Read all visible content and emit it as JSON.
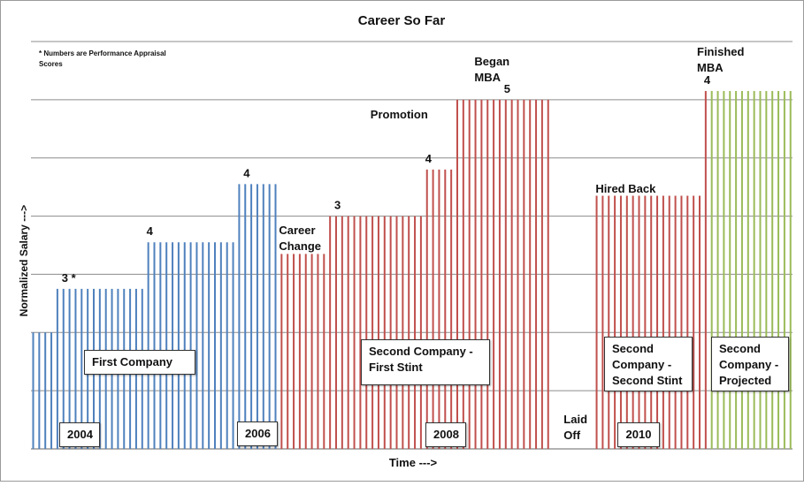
{
  "chart_data": {
    "type": "bar",
    "title": "Career So Far",
    "xlabel": "Time --->",
    "ylabel": "Normalized Salary --->",
    "note": "* Numbers are Performance Appraisal Scores",
    "ylim": [
      0,
      7
    ],
    "grid": true,
    "segments": [
      {
        "name": "First Company",
        "color": "#4f81bd",
        "start": 0,
        "count": 4,
        "value": 2
      },
      {
        "name": "First Company",
        "color": "#4f81bd",
        "start": 4,
        "count": 15,
        "value": 2.75
      },
      {
        "name": "First Company",
        "color": "#4f81bd",
        "start": 19,
        "count": 15,
        "value": 3.55
      },
      {
        "name": "First Company",
        "color": "#4f81bd",
        "start": 34,
        "count": 7,
        "value": 4.55
      },
      {
        "name": "Second Company - First Stint",
        "color": "#c0504d",
        "start": 41,
        "count": 8,
        "value": 3.35
      },
      {
        "name": "Second Company - First Stint",
        "color": "#c0504d",
        "start": 49,
        "count": 16,
        "value": 4
      },
      {
        "name": "Second Company - First Stint",
        "color": "#c0504d",
        "start": 65,
        "count": 5,
        "value": 4.8
      },
      {
        "name": "Second Company - First Stint",
        "color": "#c0504d",
        "start": 70,
        "count": 16,
        "value": 6
      },
      {
        "name": "Laid Off",
        "color": "#c0504d",
        "start": 86,
        "count": 7,
        "value": 0
      },
      {
        "name": "Second Company - Second Stint",
        "color": "#c0504d",
        "start": 93,
        "count": 18,
        "value": 4.35
      },
      {
        "name": "Second Company - Second Stint",
        "color": "#c0504d",
        "start": 111,
        "count": 1,
        "value": 6.15
      },
      {
        "name": "Second Company - Projected",
        "color": "#9bbb59",
        "start": 112,
        "count": 14,
        "value": 6.15
      }
    ],
    "annotations": [
      {
        "text": "3 *",
        "index": 5
      },
      {
        "text": "4",
        "index": 19
      },
      {
        "text": "4",
        "index": 35
      },
      {
        "text": "3",
        "index": 50
      },
      {
        "text": "4",
        "index": 65
      },
      {
        "text": "5",
        "index": 78
      },
      {
        "text": "4",
        "index": 111
      }
    ],
    "events": [
      {
        "text": [
          "Career",
          "Change"
        ],
        "index": 41
      },
      {
        "text": [
          "Promotion"
        ],
        "index": 58
      },
      {
        "text": [
          "Began",
          "MBA"
        ],
        "index": 74
      },
      {
        "text": [
          "Hired Back"
        ],
        "index": 94
      },
      {
        "text": [
          "Finished",
          "MBA"
        ],
        "index": 110
      },
      {
        "text": [
          "Laid",
          "Off"
        ],
        "index": 88
      }
    ],
    "group_labels": [
      {
        "text": "First Company",
        "index": 9
      },
      {
        "text": "Second Company - First Stint",
        "index": 55
      },
      {
        "text": "Second Company - Second Stint",
        "index": 94
      },
      {
        "text": "Second Company - Projected",
        "index": 113
      }
    ],
    "year_labels": [
      {
        "text": "2004",
        "index": 4
      },
      {
        "text": "2006",
        "index": 35
      },
      {
        "text": "2008",
        "index": 63
      },
      {
        "text": "2010",
        "index": 97
      }
    ]
  }
}
